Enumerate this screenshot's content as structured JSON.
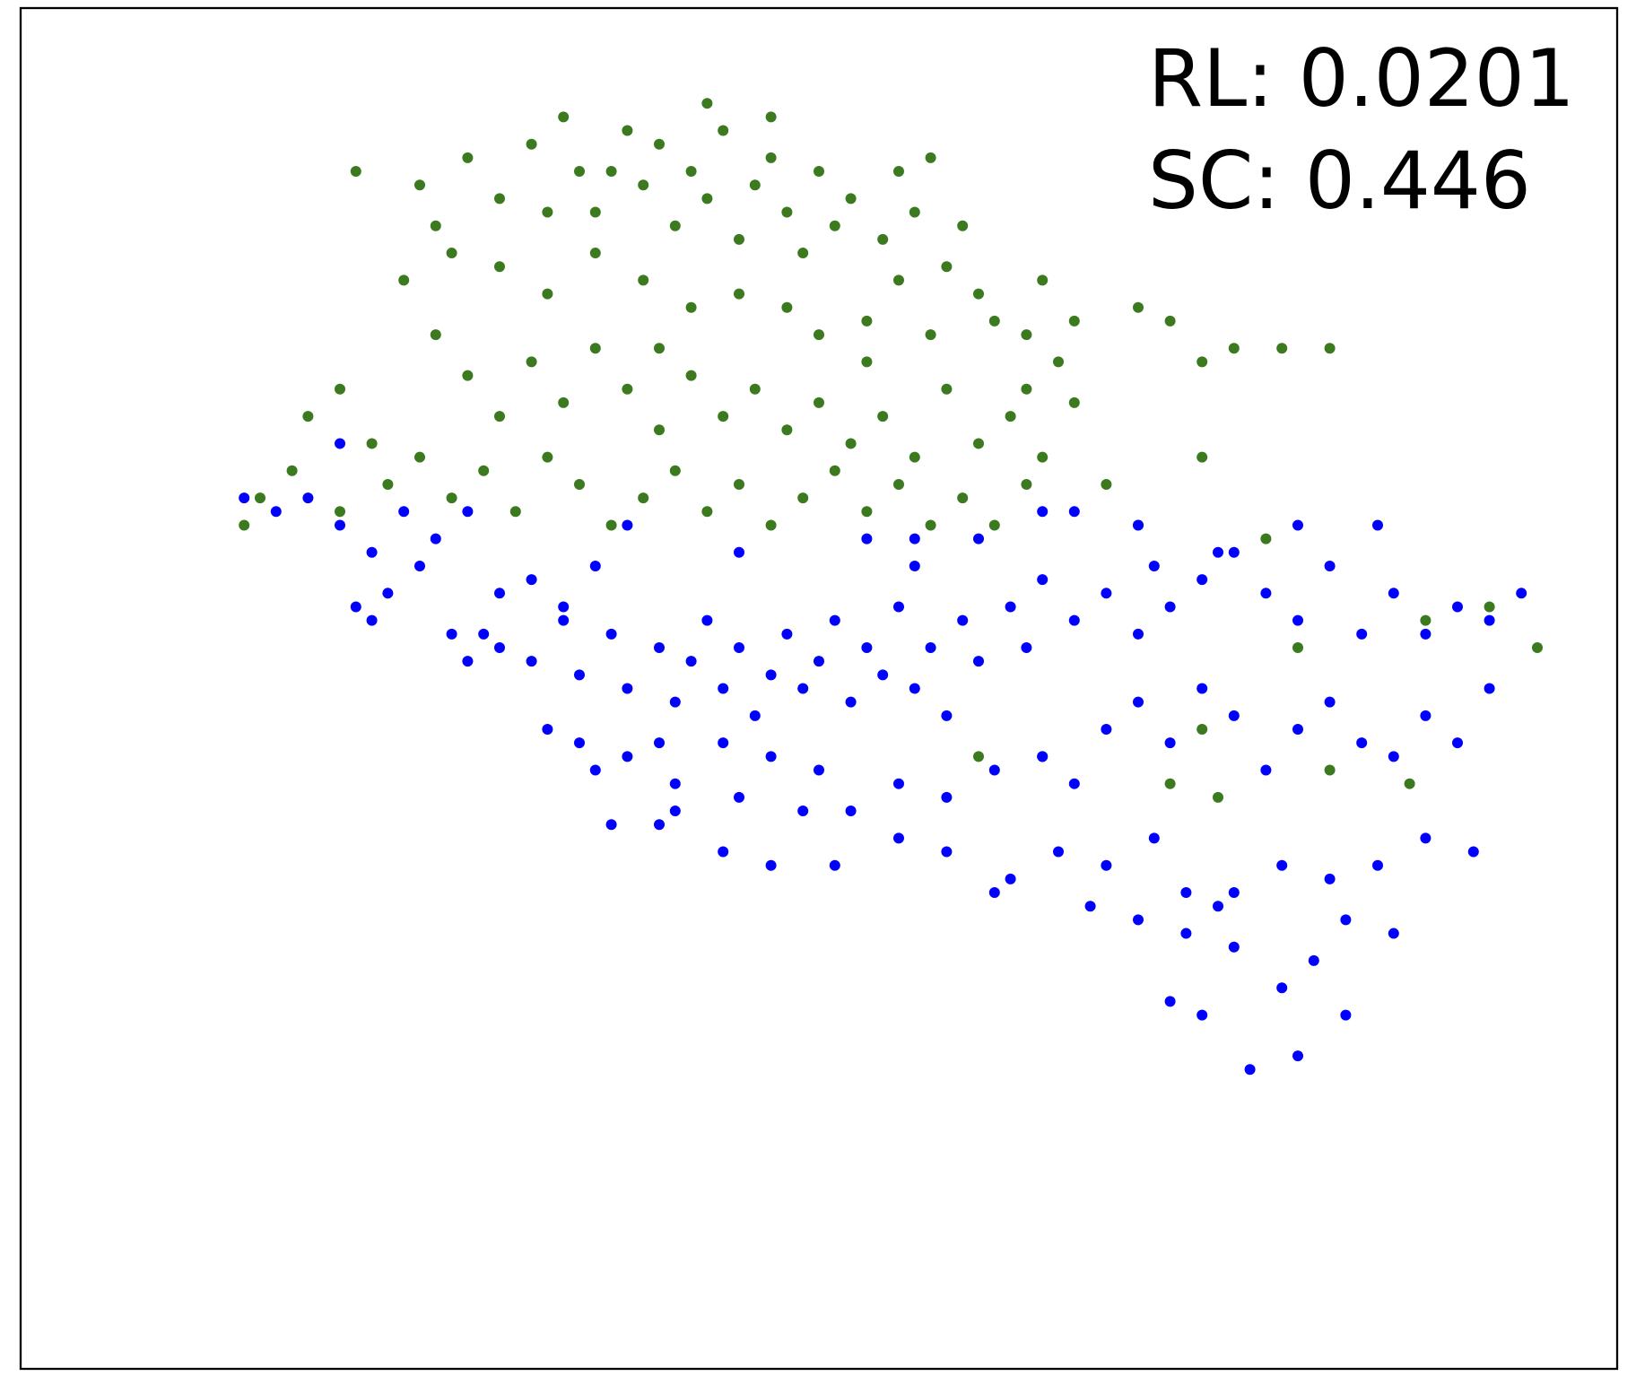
{
  "chart_data": {
    "type": "scatter",
    "annotations": [
      "RL: 0.0201",
      "SC: 0.446"
    ],
    "xlim": [
      0,
      100
    ],
    "ylim": [
      0,
      100
    ],
    "series": [
      {
        "color": "#3b7a1f",
        "x": [
          21,
          25,
          26,
          28,
          30,
          32,
          34,
          35,
          36,
          38,
          39,
          40,
          41,
          42,
          43,
          44,
          45,
          46,
          47,
          48,
          49,
          50,
          51,
          52,
          54,
          55,
          56,
          58,
          59,
          60,
          30,
          33,
          36,
          39,
          42,
          45,
          48,
          50,
          53,
          57,
          61,
          63,
          65,
          66,
          24,
          26,
          28,
          30,
          32,
          34,
          36,
          38,
          40,
          42,
          44,
          46,
          48,
          50,
          52,
          54,
          56,
          58,
          60,
          62,
          64,
          66,
          18,
          20,
          22,
          23,
          25,
          27,
          29,
          31,
          33,
          35,
          37,
          39,
          41,
          43,
          45,
          47,
          49,
          51,
          53,
          55,
          57,
          59,
          61,
          63,
          15,
          17,
          14,
          20,
          70,
          72,
          74,
          76,
          82,
          57,
          43,
          37,
          27,
          70,
          74,
          64,
          55,
          47,
          33,
          40,
          53,
          63,
          68,
          78,
          79,
          88,
          92,
          80,
          75,
          82,
          87,
          72,
          74,
          95,
          60
        ],
        "y": [
          88,
          87,
          84,
          89,
          86,
          90,
          92,
          88,
          85,
          91,
          87,
          90,
          84,
          88,
          86,
          91,
          83,
          87,
          89,
          85,
          82,
          88,
          84,
          86,
          83,
          80,
          85,
          81,
          84,
          79,
          81,
          79,
          82,
          80,
          78,
          79,
          78,
          76,
          77,
          76,
          77,
          76,
          74,
          77,
          80,
          76,
          73,
          70,
          74,
          71,
          75,
          72,
          69,
          73,
          70,
          72,
          69,
          71,
          68,
          70,
          67,
          72,
          68,
          70,
          67,
          71,
          70,
          72,
          68,
          65,
          67,
          64,
          66,
          63,
          67,
          65,
          62,
          64,
          66,
          63,
          65,
          62,
          64,
          66,
          63,
          65,
          62,
          64,
          62,
          65,
          64,
          66,
          62,
          63,
          78,
          77,
          74,
          75,
          75,
          89,
          93,
          88,
          82,
          62,
          67,
          80,
          88,
          92,
          85,
          75,
          74,
          72,
          65,
          61,
          75,
          55,
          56,
          53,
          42,
          44,
          43,
          43,
          47,
          53,
          45
        ]
      },
      {
        "color": "#0000ff",
        "x": [
          14,
          16,
          18,
          20,
          22,
          24,
          26,
          28,
          21,
          22,
          25,
          27,
          29,
          30,
          32,
          34,
          36,
          28,
          30,
          32,
          34,
          35,
          37,
          38,
          40,
          41,
          42,
          43,
          44,
          45,
          46,
          47,
          48,
          49,
          50,
          51,
          52,
          53,
          54,
          55,
          56,
          57,
          58,
          59,
          60,
          62,
          63,
          64,
          66,
          68,
          70,
          71,
          72,
          74,
          76,
          78,
          80,
          82,
          84,
          86,
          88,
          90,
          92,
          94,
          33,
          35,
          38,
          40,
          44,
          47,
          50,
          36,
          41,
          45,
          49,
          52,
          55,
          58,
          61,
          64,
          66,
          68,
          70,
          72,
          74,
          76,
          78,
          80,
          82,
          84,
          86,
          88,
          90,
          92,
          40,
          44,
          47,
          51,
          55,
          58,
          62,
          65,
          68,
          71,
          73,
          76,
          79,
          82,
          85,
          88,
          91,
          37,
          41,
          61,
          67,
          73,
          76,
          81,
          83,
          86,
          70,
          74,
          77,
          80,
          83,
          72,
          79,
          75,
          64,
          56,
          60,
          66,
          20,
          23,
          53,
          38,
          45,
          56,
          64,
          70,
          75,
          80,
          85
        ],
        "y": [
          64,
          63,
          64,
          62,
          60,
          63,
          61,
          63,
          56,
          55,
          59,
          54,
          54,
          57,
          58,
          56,
          59,
          52,
          53,
          52,
          55,
          51,
          54,
          50,
          53,
          49,
          52,
          55,
          50,
          53,
          48,
          51,
          54,
          50,
          52,
          55,
          49,
          53,
          51,
          56,
          50,
          53,
          48,
          55,
          52,
          56,
          53,
          58,
          55,
          57,
          54,
          59,
          56,
          58,
          60,
          57,
          55,
          59,
          54,
          57,
          54,
          56,
          55,
          57,
          47,
          46,
          45,
          46,
          46,
          45,
          44,
          44,
          43,
          42,
          41,
          41,
          43,
          42,
          44,
          45,
          43,
          47,
          49,
          46,
          50,
          48,
          44,
          47,
          49,
          46,
          45,
          48,
          46,
          50,
          40,
          38,
          37,
          37,
          39,
          38,
          36,
          38,
          37,
          39,
          35,
          35,
          37,
          36,
          37,
          39,
          38,
          40,
          41,
          35,
          34,
          32,
          31,
          30,
          33,
          32,
          33,
          26,
          22,
          23,
          26,
          27,
          28,
          34,
          45,
          59,
          61,
          63,
          68,
          57,
          61,
          62,
          60,
          61,
          63,
          62,
          60,
          62,
          62
        ]
      }
    ]
  }
}
